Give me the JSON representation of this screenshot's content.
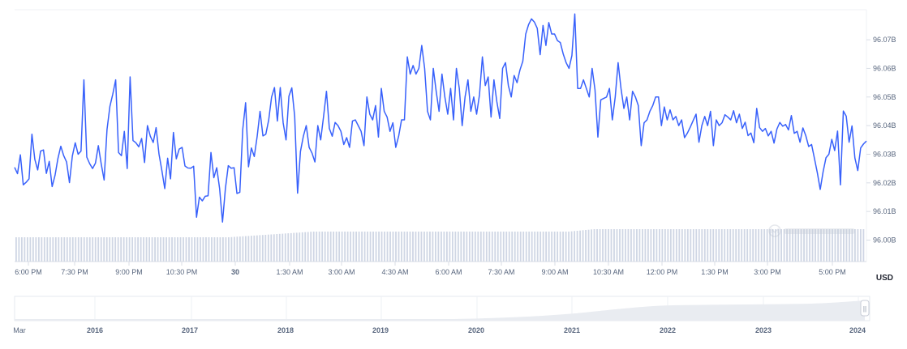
{
  "chart_data": {
    "type": "line",
    "title": "",
    "xlabel": "",
    "ylabel": "",
    "currency_label": "USD",
    "colors": {
      "line": "#3861fb",
      "volume": "#cfd6e4",
      "grid": "#eff2f5"
    },
    "y_ticks": [
      "96.00B",
      "96.01B",
      "96.02B",
      "96.03B",
      "96.04B",
      "96.05B",
      "96.06B",
      "96.07B"
    ],
    "ylim": [
      95.9925,
      96.0805
    ],
    "x_ticks": [
      "6:00 PM",
      "7:30 PM",
      "9:00 PM",
      "10:30 PM",
      "30",
      "1:30 AM",
      "3:00 AM",
      "4:30 AM",
      "6:00 AM",
      "7:30 AM",
      "9:00 AM",
      "10:30 AM",
      "12:00 PM",
      "1:30 PM",
      "3:00 PM",
      "5:00 PM"
    ],
    "x_ticks_bold": [
      "30"
    ],
    "series": [
      {
        "values": [
          96.0254,
          96.0232,
          96.0298,
          96.0193,
          96.0202,
          96.0214,
          96.037,
          96.0282,
          96.0245,
          96.0311,
          96.0315,
          96.0233,
          96.0275,
          96.0187,
          96.0226,
          96.0285,
          96.0328,
          96.0295,
          96.0273,
          96.0201,
          96.0294,
          96.034,
          96.03,
          96.0311,
          96.056,
          96.029,
          96.0267,
          96.025,
          96.0269,
          96.033,
          96.0266,
          96.021,
          96.0386,
          96.0467,
          96.051,
          96.056,
          96.0306,
          96.0295,
          96.038,
          96.025,
          96.057,
          96.0348,
          96.034,
          96.0326,
          96.0355,
          96.0271,
          96.04,
          96.0363,
          96.0341,
          96.0393,
          96.0301,
          96.0243,
          96.018,
          96.0286,
          96.0214,
          96.0376,
          96.0284,
          96.0318,
          96.0324,
          96.0259,
          96.0252,
          96.0251,
          96.0258,
          96.008,
          96.015,
          96.0137,
          96.0153,
          96.0155,
          96.0306,
          96.0218,
          96.0253,
          96.018,
          96.0063,
          96.018,
          96.026,
          96.0251,
          96.0253,
          96.0163,
          96.0167,
          96.0386,
          96.048,
          96.0256,
          96.0322,
          96.0292,
          96.0362,
          96.045,
          96.0364,
          96.037,
          96.042,
          96.05,
          96.0533,
          96.0416,
          96.0533,
          96.041,
          96.035,
          96.0503,
          96.0532,
          96.0432,
          96.0164,
          96.031,
          96.0363,
          96.04,
          96.0324,
          96.0304,
          96.0273,
          96.04,
          96.035,
          96.0432,
          96.052,
          96.039,
          96.0363,
          96.0411,
          96.04,
          96.038,
          96.0334,
          96.0358,
          96.0324,
          96.0416,
          96.042,
          96.04,
          96.038,
          96.033,
          96.05,
          96.044,
          96.042,
          96.047,
          96.036,
          96.053,
          96.045,
          96.043,
          96.038,
          96.041,
          96.0324,
          96.0363,
          96.042,
          96.042,
          96.064,
          96.058,
          96.061,
          96.058,
          96.06,
          96.068,
          96.06,
          96.045,
          96.042,
          96.06,
          96.052,
          96.045,
          96.058,
          96.05,
          96.044,
          96.053,
          96.042,
          96.06,
          96.053,
          96.04,
          96.05,
          96.056,
          96.045,
          96.05,
          96.044,
          96.0508,
          96.064,
          96.054,
          96.057,
          96.043,
          96.056,
          96.0484,
          96.0425,
          96.06,
          96.062,
          96.054,
          96.05,
          96.0575,
          96.055,
          96.0594,
          96.0625,
          96.072,
          96.0753,
          96.0773,
          96.0762,
          96.074,
          96.0648,
          96.075,
          96.068,
          96.076,
          96.072,
          96.072,
          96.0697,
          96.069,
          96.065,
          96.062,
          96.06,
          96.0645,
          96.079,
          96.053,
          96.053,
          96.056,
          96.053,
          96.05,
          96.06,
          96.0525,
          96.036,
          96.049,
          96.0495,
          96.05,
          96.053,
          96.042,
          96.05,
          96.062,
          96.053,
          96.046,
          96.05,
          96.042,
          96.052,
          96.05,
          96.047,
          96.033,
          96.041,
          96.042,
          96.045,
          96.047,
          96.05,
          96.05,
          96.04,
          96.0465,
          96.042,
          96.0455,
          96.042,
          96.0432,
          96.04,
          96.042,
          96.0358,
          96.0374,
          96.0395,
          96.0418,
          96.044,
          96.0342,
          96.04,
          96.0432,
          96.04,
          96.045,
          96.033,
          96.042,
          96.04,
          96.041,
          96.0438,
          96.043,
          96.042,
          96.0452,
          96.041,
          96.044,
          96.039,
          96.0412,
          96.0365,
          96.0374,
          96.034,
          96.046,
          96.0393,
          96.038,
          96.039,
          96.0364,
          96.038,
          96.0339,
          96.0388,
          96.0411,
          96.0398,
          96.0404,
          96.0385,
          96.0435,
          96.0373,
          96.038,
          96.0342,
          96.0392,
          96.0365,
          96.0327,
          96.0334,
          96.0285,
          96.0235,
          96.0177,
          96.0239,
          96.0288,
          96.03,
          96.0352,
          96.0313,
          96.0381,
          96.0193,
          96.0451,
          96.0433,
          96.0342,
          96.0399,
          96.0287,
          96.0243,
          96.0322,
          96.0336,
          96.0346
        ]
      }
    ],
    "navigator": {
      "labels": [
        "Mar",
        "2016",
        "2017",
        "2018",
        "2019",
        "2020",
        "2021",
        "2022",
        "2023",
        "2024"
      ],
      "bold_labels": [
        "2016",
        "2017",
        "2018",
        "2019",
        "2020",
        "2021",
        "2022",
        "2023",
        "2024"
      ],
      "handle_symbol": "||"
    }
  }
}
